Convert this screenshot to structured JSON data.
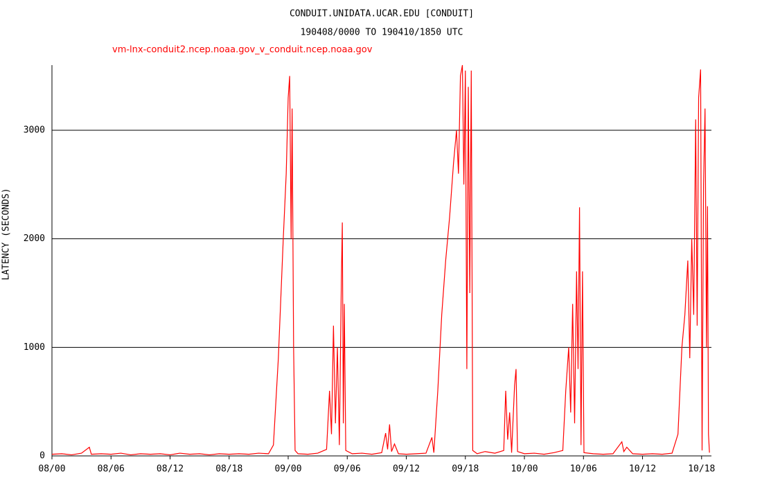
{
  "chart_data": {
    "type": "line",
    "title": "CONDUIT.UNIDATA.UCAR.EDU [CONDUIT]",
    "subtitle": "190408/0000 TO 190410/1850 UTC",
    "y_label": "LATENCY (SECONDS)",
    "x": [
      0,
      1,
      2,
      3,
      3.8,
      4,
      5,
      6,
      7,
      8,
      9,
      10,
      11,
      12,
      13,
      14,
      15,
      16,
      17,
      18,
      19,
      20,
      21,
      22,
      22.5,
      23,
      23.5,
      23.8,
      24.0,
      24.15,
      24.3,
      24.4,
      24.55,
      24.7,
      25,
      26,
      27,
      27.9,
      28.2,
      28.4,
      28.6,
      28.8,
      29.0,
      29.2,
      29.4,
      29.5,
      29.6,
      29.7,
      29.85,
      30.5,
      31.5,
      32.5,
      33.5,
      33.9,
      34.1,
      34.3,
      34.5,
      34.8,
      35.2,
      36,
      37,
      38,
      38.6,
      38.8,
      39.2,
      39.6,
      40,
      40.4,
      40.8,
      41.1,
      41.3,
      41.5,
      41.7,
      41.85,
      42.0,
      42.15,
      42.3,
      42.45,
      42.6,
      42.75,
      43.2,
      44,
      45,
      45.9,
      46.1,
      46.3,
      46.5,
      46.7,
      47.0,
      47.15,
      47.3,
      48,
      49,
      50,
      51,
      51.9,
      52.2,
      52.5,
      52.7,
      52.9,
      53.1,
      53.3,
      53.45,
      53.6,
      53.75,
      53.9,
      54.05,
      55,
      56,
      57,
      57.9,
      58.1,
      58.4,
      59,
      60,
      61,
      62,
      63,
      63.6,
      64,
      64.3,
      64.6,
      64.8,
      65.0,
      65.2,
      65.4,
      65.55,
      65.7,
      65.9,
      66.05,
      66.2,
      66.35,
      66.5,
      66.6,
      66.7,
      66.8
    ],
    "series": [
      {
        "name": "vm-lnx-conduit2.ncep.noaa.gov_v_conduit.ncep.noaa.gov",
        "color": "#ff0000",
        "values": [
          15,
          20,
          10,
          25,
          80,
          15,
          20,
          15,
          25,
          10,
          20,
          15,
          20,
          10,
          25,
          15,
          20,
          10,
          20,
          15,
          20,
          15,
          25,
          20,
          100,
          900,
          2000,
          2600,
          3300,
          3500,
          2000,
          3200,
          1000,
          50,
          20,
          15,
          25,
          60,
          600,
          200,
          1200,
          300,
          1000,
          100,
          1600,
          2150,
          300,
          1400,
          50,
          20,
          25,
          15,
          30,
          210,
          60,
          290,
          40,
          110,
          20,
          15,
          20,
          25,
          170,
          30,
          600,
          1300,
          1800,
          2200,
          2700,
          3000,
          2600,
          3500,
          3600,
          2500,
          3550,
          800,
          3400,
          1500,
          3550,
          50,
          20,
          40,
          25,
          50,
          600,
          150,
          400,
          30,
          650,
          800,
          40,
          20,
          25,
          15,
          30,
          50,
          600,
          1000,
          400,
          1400,
          300,
          1700,
          800,
          2290,
          100,
          1700,
          30,
          20,
          15,
          20,
          130,
          40,
          80,
          20,
          15,
          20,
          15,
          25,
          200,
          1000,
          1300,
          1800,
          900,
          2000,
          1300,
          3100,
          1200,
          3300,
          3560,
          50,
          2500,
          3200,
          1000,
          2300,
          200,
          30
        ]
      }
    ],
    "xlim": [
      0,
      67
    ],
    "xticks": [
      {
        "value": 0,
        "label": "08/00"
      },
      {
        "value": 6,
        "label": "08/06"
      },
      {
        "value": 12,
        "label": "08/12"
      },
      {
        "value": 18,
        "label": "08/18"
      },
      {
        "value": 24,
        "label": "09/00"
      },
      {
        "value": 30,
        "label": "09/06"
      },
      {
        "value": 36,
        "label": "09/12"
      },
      {
        "value": 42,
        "label": "09/18"
      },
      {
        "value": 48,
        "label": "10/00"
      },
      {
        "value": 54,
        "label": "10/06"
      },
      {
        "value": 60,
        "label": "10/12"
      },
      {
        "value": 66,
        "label": "10/18"
      }
    ],
    "ylim": [
      0,
      3600
    ],
    "yticks": [
      0,
      1000,
      2000,
      3000
    ],
    "grid": true
  }
}
